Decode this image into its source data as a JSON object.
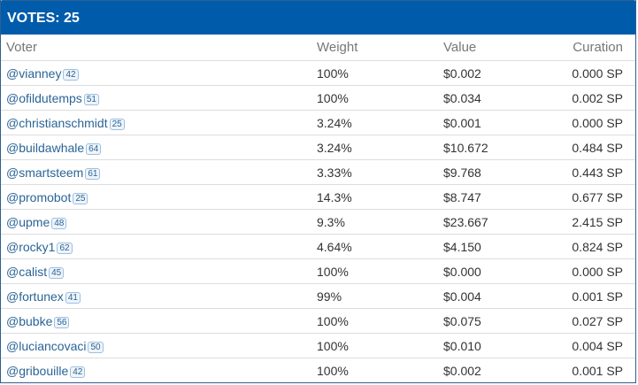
{
  "header": {
    "title": "VOTES: 25"
  },
  "table": {
    "columns": {
      "voter": "Voter",
      "weight": "Weight",
      "value": "Value",
      "curation": "Curation"
    },
    "rows": [
      {
        "voter": "@vianney",
        "rep": "42",
        "weight": "100%",
        "value": "$0.002",
        "curation": "0.000 SP"
      },
      {
        "voter": "@ofildutemps",
        "rep": "51",
        "weight": "100%",
        "value": "$0.034",
        "curation": "0.002 SP"
      },
      {
        "voter": "@christianschmidt",
        "rep": "25",
        "weight": "3.24%",
        "value": "$0.001",
        "curation": "0.000 SP"
      },
      {
        "voter": "@buildawhale",
        "rep": "64",
        "weight": "3.24%",
        "value": "$10.672",
        "curation": "0.484 SP"
      },
      {
        "voter": "@smartsteem",
        "rep": "61",
        "weight": "3.33%",
        "value": "$9.768",
        "curation": "0.443 SP"
      },
      {
        "voter": "@promobot",
        "rep": "25",
        "weight": "14.3%",
        "value": "$8.747",
        "curation": "0.677 SP"
      },
      {
        "voter": "@upme",
        "rep": "48",
        "weight": "9.3%",
        "value": "$23.667",
        "curation": "2.415 SP"
      },
      {
        "voter": "@rocky1",
        "rep": "62",
        "weight": "4.64%",
        "value": "$4.150",
        "curation": "0.824 SP"
      },
      {
        "voter": "@calist",
        "rep": "45",
        "weight": "100%",
        "value": "$0.000",
        "curation": "0.000 SP"
      },
      {
        "voter": "@fortunex",
        "rep": "41",
        "weight": "99%",
        "value": "$0.004",
        "curation": "0.001 SP"
      },
      {
        "voter": "@bubke",
        "rep": "56",
        "weight": "100%",
        "value": "$0.075",
        "curation": "0.027 SP"
      },
      {
        "voter": "@luciancovaci",
        "rep": "50",
        "weight": "100%",
        "value": "$0.010",
        "curation": "0.004 SP"
      },
      {
        "voter": "@gribouille",
        "rep": "42",
        "weight": "100%",
        "value": "$0.002",
        "curation": "0.001 SP"
      }
    ]
  },
  "colors": {
    "header_bg": "#005cab",
    "link": "#2a6496"
  }
}
